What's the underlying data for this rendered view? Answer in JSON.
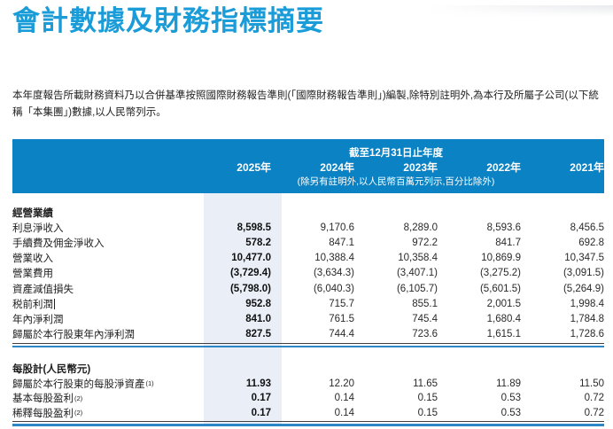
{
  "page": {
    "title": "會計數據及財務指標摘要",
    "intro": "本年度報告所載財務資料乃以合併基準按照國際財務報告準則(「國際財務報告準則」)編製,除特別註明外,為本行及所屬子公司(以下統稱「本集團」)數據,以人民幣列示。"
  },
  "colors": {
    "title_blue": "#199cd8",
    "header_bar_blue": "#0b82c3",
    "column_highlight": "#e9eef7",
    "rule_blue": "#2b87c6"
  },
  "table": {
    "period_header": "截至12月31日止年度",
    "unit_note": "(除另有註明外,以人民幣百萬元列示,百分比除外)",
    "years": [
      "2025年",
      "2024年",
      "2023年",
      "2022年",
      "2021年"
    ],
    "sections": [
      {
        "header": "經營業績",
        "rows": [
          {
            "label": "利息淨收入",
            "values": [
              "8,598.5",
              "9,170.6",
              "8,289.0",
              "8,593.6",
              "8,456.5"
            ]
          },
          {
            "label": "手續費及佣金淨收入",
            "values": [
              "578.2",
              "847.1",
              "972.2",
              "841.7",
              "692.8"
            ]
          },
          {
            "label": "營業收入",
            "values": [
              "10,477.0",
              "10,388.4",
              "10,358.4",
              "10,869.9",
              "10,347.5"
            ]
          },
          {
            "label": "營業費用",
            "values": [
              "(3,729.4)",
              "(3,634.3)",
              "(3,407.1)",
              "(3,275.2)",
              "(3,091.5)"
            ]
          },
          {
            "label": "資產減值損失",
            "values": [
              "(5,798.0)",
              "(6,040.3)",
              "(6,105.7)",
              "(5,601.5)",
              "(5,264.9)"
            ]
          },
          {
            "label": "税前利潤",
            "values": [
              "952.8",
              "715.7",
              "855.1",
              "2,001.5",
              "1,998.4"
            ]
          },
          {
            "label": "年內淨利潤",
            "values": [
              "841.0",
              "761.5",
              "745.4",
              "1,680.4",
              "1,784.8"
            ]
          },
          {
            "label": "歸屬於本行股東年內淨利潤",
            "values": [
              "827.5",
              "744.4",
              "723.6",
              "1,615.1",
              "1,728.6"
            ]
          }
        ]
      },
      {
        "header": "每股計(人民幣元)",
        "rows": [
          {
            "label": "歸屬於本行股東的每股淨資產",
            "sup": "(1)",
            "values": [
              "11.93",
              "12.20",
              "11.65",
              "11.89",
              "11.50"
            ]
          },
          {
            "label": "基本每股盈利",
            "sup": "(2)",
            "values": [
              "0.17",
              "0.14",
              "0.15",
              "0.53",
              "0.72"
            ]
          },
          {
            "label": "稀釋每股盈利",
            "sup": "(2)",
            "values": [
              "0.17",
              "0.14",
              "0.15",
              "0.53",
              "0.72"
            ]
          }
        ]
      }
    ]
  }
}
